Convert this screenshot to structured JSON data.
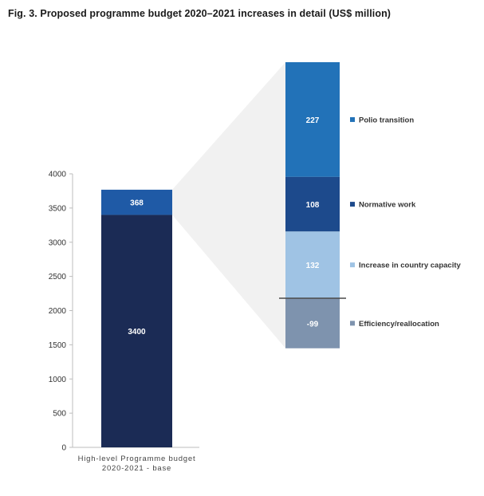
{
  "chart_data": {
    "type": "bar",
    "title": "Fig. 3. Proposed programme budget 2020–2021 increases in detail (US$ million)",
    "ylim": [
      0,
      4000
    ],
    "yticks": [
      "0",
      "500",
      "1000",
      "1500",
      "2000",
      "2500",
      "3000",
      "3500",
      "4000"
    ],
    "category_lines": [
      "High-level Programme budget",
      "2020-2021 - base"
    ],
    "main_bar": [
      {
        "label": "3400",
        "value": 3400,
        "color": "#1b2b55"
      },
      {
        "label": "368",
        "value": 368,
        "color": "#1f5aa6"
      }
    ],
    "breakdown": [
      {
        "name": "Polio transition",
        "value": 227,
        "label": "227",
        "color": "#2272b8",
        "label_color": "#ffffff"
      },
      {
        "name": "Normative work",
        "value": 108,
        "label": "108",
        "color": "#1d4a8c",
        "label_color": "#ffffff"
      },
      {
        "name": "Increase in country capacity",
        "value": 132,
        "label": "132",
        "color": "#9fc3e4",
        "label_color": "#ffffff"
      },
      {
        "name": "Efficiency/reallocation",
        "value": -99,
        "label": "-99",
        "color": "#7e93ae",
        "label_color": "#ffffff"
      }
    ],
    "grid": false,
    "legend_position": "right"
  }
}
